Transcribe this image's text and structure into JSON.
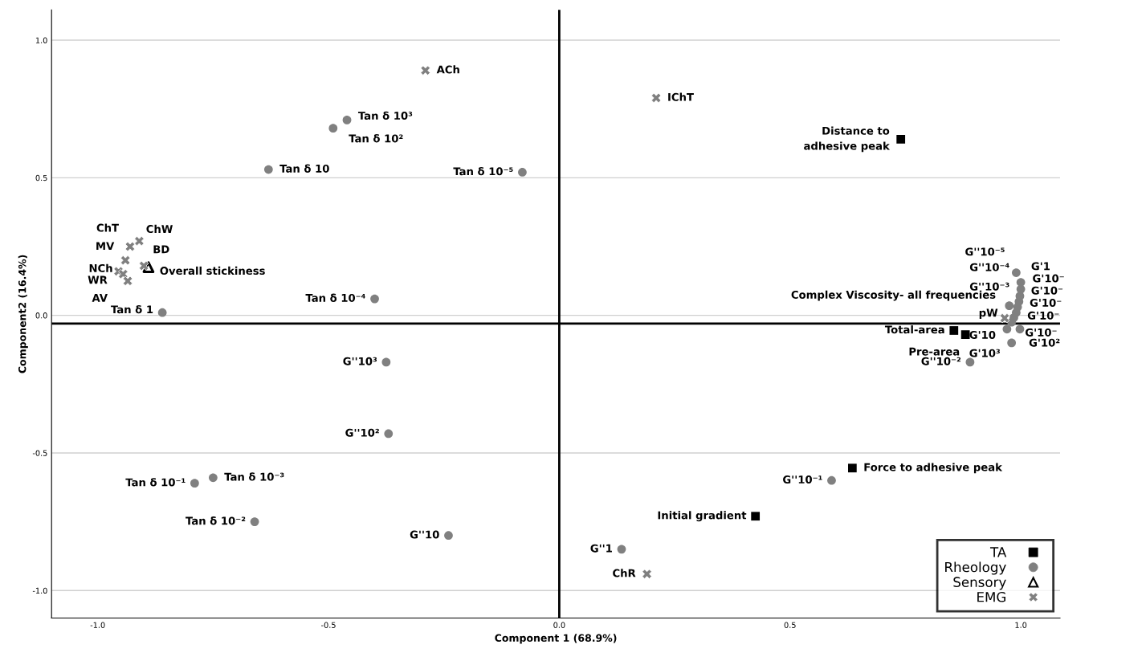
{
  "chart_data": {
    "type": "scatter",
    "xlabel": "Component 1 (68.9%)",
    "ylabel": "Component2 (16.4%)",
    "xlim": [
      -1.1,
      1.085
    ],
    "ylim": [
      -1.1,
      1.11
    ],
    "xticks": [
      {
        "value": -1,
        "label": "-1.0"
      },
      {
        "value": -0.5,
        "label": "-0.5"
      },
      {
        "value": 0,
        "label": "0.0"
      },
      {
        "value": 0.5,
        "label": "0.5"
      },
      {
        "value": 1,
        "label": "1.0"
      }
    ],
    "yticks": [
      {
        "value": -1,
        "label": "-1.0"
      },
      {
        "value": -0.5,
        "label": "-0.5"
      },
      {
        "value": 0,
        "label": "0.0"
      },
      {
        "value": 0.5,
        "label": "0.5"
      },
      {
        "value": 1,
        "label": "1.0"
      }
    ],
    "grid": "y",
    "legend": "bottom right",
    "ref_lines": [
      {
        "axis": "x",
        "value": 0,
        "color": "#000000"
      },
      {
        "axis": "y",
        "value": -0.03,
        "color": "#000000"
      }
    ],
    "series": [
      {
        "name": "TA",
        "color": "#000000",
        "marker": "square",
        "x": [
          0.74,
          0.855,
          0.88,
          0.635,
          0.425
        ],
        "values": [
          0.64,
          -0.055,
          -0.07,
          -0.555,
          -0.73
        ]
      },
      {
        "name": "Rheology",
        "color": "#808080",
        "marker": "circle",
        "x": [
          -0.46,
          -0.49,
          -0.63,
          -0.08,
          -0.86,
          -0.4,
          -0.375,
          -0.37,
          -0.79,
          -0.75,
          -0.66,
          -0.24,
          0.135,
          0.59,
          0.89,
          0.98,
          0.97,
          0.998,
          0.99,
          1.0,
          1.0,
          0.998,
          0.996,
          0.993,
          0.99,
          0.985,
          0.98,
          0.975
        ],
        "values": [
          0.71,
          0.68,
          0.53,
          0.52,
          0.01,
          0.06,
          -0.17,
          -0.43,
          -0.61,
          -0.59,
          -0.75,
          -0.8,
          -0.85,
          -0.6,
          -0.17,
          -0.1,
          -0.05,
          -0.05,
          0.155,
          0.12,
          0.095,
          0.07,
          0.05,
          0.03,
          0.01,
          -0.008,
          -0.025,
          0.035
        ]
      },
      {
        "name": "Sensory",
        "color": "#000000",
        "marker": "triangle",
        "x": [
          -0.89
        ],
        "values": [
          0.175
        ]
      },
      {
        "name": "EMG",
        "color": "#808080",
        "marker": "cross",
        "x": [
          -0.29,
          0.21,
          0.19,
          0.965,
          -0.91,
          -0.93,
          -0.94,
          -0.955,
          -0.945,
          -0.935,
          -0.9
        ],
        "values": [
          0.89,
          0.79,
          -0.94,
          -0.01,
          0.27,
          0.25,
          0.2,
          0.16,
          0.15,
          0.125,
          0.18
        ]
      }
    ],
    "annotations": [
      {
        "text": "Distance to\nadhesive peak",
        "x": 0.74,
        "y": 0.64
      },
      {
        "text": "Total-area",
        "x": 0.855,
        "y": -0.055
      },
      {
        "text": "Pre-area",
        "x": 0.88,
        "y": -0.07
      },
      {
        "text": "Force to adhesive peak",
        "x": 0.635,
        "y": -0.555
      },
      {
        "text": "Initial gradient",
        "x": 0.425,
        "y": -0.73
      },
      {
        "text": "Tan δ 10³",
        "x": -0.46,
        "y": 0.71
      },
      {
        "text": "Tan δ 10²",
        "x": -0.49,
        "y": 0.68
      },
      {
        "text": "Tan δ 10",
        "x": -0.63,
        "y": 0.53
      },
      {
        "text": "Tan δ 10⁻⁵",
        "x": -0.08,
        "y": 0.52
      },
      {
        "text": "Tan δ 1",
        "x": -0.86,
        "y": 0.01
      },
      {
        "text": "Tan δ 10⁻⁴",
        "x": -0.4,
        "y": 0.06
      },
      {
        "text": "G''10³",
        "x": -0.375,
        "y": -0.17
      },
      {
        "text": "G''10²",
        "x": -0.37,
        "y": -0.43
      },
      {
        "text": "Tan δ 10⁻¹",
        "x": -0.79,
        "y": -0.61
      },
      {
        "text": "Tan δ 10⁻³",
        "x": -0.75,
        "y": -0.59
      },
      {
        "text": "Tan δ 10⁻²",
        "x": -0.66,
        "y": -0.75
      },
      {
        "text": "G''10",
        "x": -0.24,
        "y": -0.8
      },
      {
        "text": "G''1",
        "x": 0.135,
        "y": -0.85
      },
      {
        "text": "G''10⁻¹",
        "x": 0.59,
        "y": -0.6
      },
      {
        "text": "G''10⁻²",
        "x": 0.89,
        "y": -0.17
      },
      {
        "text": "G'10³",
        "x": 0.98,
        "y": -0.1
      },
      {
        "text": "G'10",
        "x": 0.97,
        "y": -0.05
      },
      {
        "text": "G'10²",
        "x": 0.998,
        "y": -0.05
      },
      {
        "text": "G''10⁻⁵",
        "x": 0.99,
        "y": 0.155
      },
      {
        "text": "G''10⁻⁴",
        "x": 1.0,
        "y": 0.115
      },
      {
        "text": "G''10⁻³",
        "x": 1.0,
        "y": 0.085
      },
      {
        "text": "G'1",
        "x": 0.998,
        "y": 0.07
      },
      {
        "text": "G'10⁻",
        "x": 0.996,
        "y": 0.05
      },
      {
        "text": "G'10⁻",
        "x": 0.993,
        "y": 0.03
      },
      {
        "text": "G'10⁻",
        "x": 0.99,
        "y": 0.01
      },
      {
        "text": "G'10⁻",
        "x": 0.985,
        "y": -0.008
      },
      {
        "text": "G'10⁻",
        "x": 0.98,
        "y": -0.025
      },
      {
        "text": "Complex Viscosity- all frequencies",
        "x": 0.975,
        "y": 0.035
      },
      {
        "text": "Overall stickiness",
        "x": -0.89,
        "y": 0.175
      },
      {
        "text": "ACh",
        "x": -0.29,
        "y": 0.89
      },
      {
        "text": "IChT",
        "x": 0.21,
        "y": 0.79
      },
      {
        "text": "ChR",
        "x": 0.19,
        "y": -0.94
      },
      {
        "text": "pW",
        "x": 0.965,
        "y": -0.01
      },
      {
        "text": "ChW",
        "x": -0.91,
        "y": 0.27
      },
      {
        "text": "ChT",
        "x": -0.93,
        "y": 0.25
      },
      {
        "text": "MV",
        "x": -0.94,
        "y": 0.2
      },
      {
        "text": "NCh",
        "x": -0.955,
        "y": 0.16
      },
      {
        "text": "WR",
        "x": -0.945,
        "y": 0.15
      },
      {
        "text": "AV",
        "x": -0.935,
        "y": 0.125
      },
      {
        "text": "BD",
        "x": -0.9,
        "y": 0.18
      }
    ]
  }
}
